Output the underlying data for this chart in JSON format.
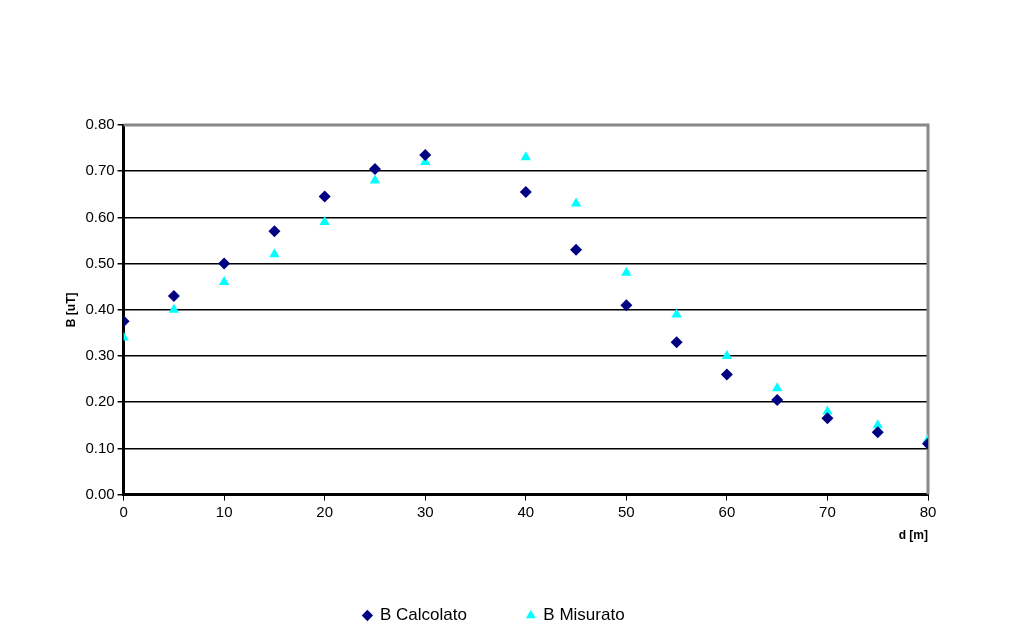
{
  "chart_data": {
    "type": "scatter",
    "xlabel": "d [m]",
    "ylabel": "B [uT]",
    "x": [
      0,
      5,
      10,
      15,
      20,
      25,
      30,
      40,
      45,
      50,
      55,
      60,
      65,
      70,
      75,
      80
    ],
    "series": [
      {
        "name": "B Calcolato",
        "color": "#000080",
        "marker": "diamond",
        "values": [
          0.375,
          0.43,
          0.5,
          0.57,
          0.645,
          0.705,
          0.735,
          0.655,
          0.53,
          0.41,
          0.33,
          0.26,
          0.205,
          0.165,
          0.135,
          0.11
        ]
      },
      {
        "name": "B Misurato",
        "color": "#00ffff",
        "marker": "triangle",
        "values": [
          0.34,
          0.4,
          0.46,
          0.52,
          0.59,
          0.68,
          0.72,
          0.73,
          0.63,
          0.48,
          0.39,
          0.3,
          0.23,
          0.18,
          0.15,
          0.12
        ]
      }
    ],
    "xlim": [
      0,
      80
    ],
    "xticks": [
      0,
      10,
      20,
      30,
      40,
      50,
      60,
      70,
      80
    ],
    "ylim": [
      0,
      0.8
    ],
    "yticks": [
      {
        "value": 0,
        "label": "0.00"
      },
      {
        "value": 0.1,
        "label": "0.10"
      },
      {
        "value": 0.2,
        "label": "0.20"
      },
      {
        "value": 0.3,
        "label": "0.30"
      },
      {
        "value": 0.4,
        "label": "0.40"
      },
      {
        "value": 0.5,
        "label": "0.50"
      },
      {
        "value": 0.6,
        "label": "0.60"
      },
      {
        "value": 0.7,
        "label": "0.70"
      },
      {
        "value": 0.8,
        "label": "0.80"
      }
    ],
    "grid": "y",
    "legend": "bottom"
  }
}
